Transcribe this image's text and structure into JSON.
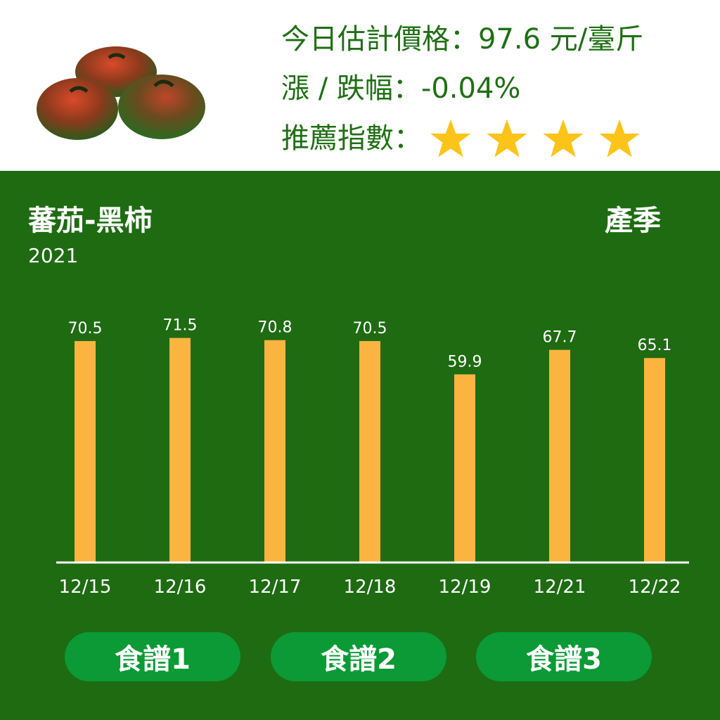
{
  "header": {
    "price_label": "今日估計價格：",
    "price_value": "97.6 元/臺斤",
    "change_label": "漲 / 跌幅：",
    "change_value": "-0.04%",
    "recommend_label": "推薦指數：",
    "recommend_stars": 4,
    "photo_icon": "tomato-photo"
  },
  "panel": {
    "title": "蕃茄-黑柿",
    "season": "產季",
    "year": "2021"
  },
  "chart_data": {
    "type": "bar",
    "categories": [
      "12/15",
      "12/16",
      "12/17",
      "12/18",
      "12/19",
      "12/21",
      "12/22"
    ],
    "values": [
      70.5,
      71.5,
      70.8,
      70.5,
      59.9,
      67.7,
      65.1
    ],
    "data_labels": [
      "70.5",
      "71.5",
      "70.8",
      "70.5",
      "59.9",
      "67.7",
      "65.1"
    ],
    "title": "",
    "xlabel": "",
    "ylabel": "",
    "grid": false,
    "colors": {
      "bar": "#fbb440",
      "axis": "#ffffff",
      "label": "#ffffff",
      "background": "#1e6b12"
    }
  },
  "buttons": [
    {
      "label": "食譜1"
    },
    {
      "label": "食譜2"
    },
    {
      "label": "食譜3"
    }
  ],
  "colors": {
    "header_text": "#1f6f14",
    "star": "#fcc419",
    "button": "#0b9a35"
  }
}
